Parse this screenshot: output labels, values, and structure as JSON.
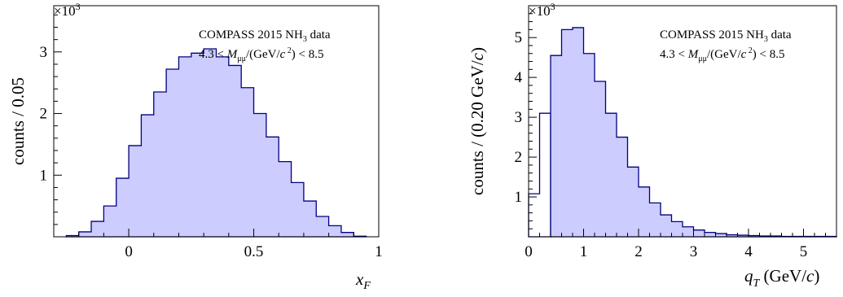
{
  "chart_data": [
    {
      "type": "bar",
      "ylabel": "counts / 0.05",
      "xlabel": "x_F",
      "y_multiplier": "×10^3",
      "annotation_line1": "COMPASS 2015 NH3 data",
      "annotation_line2": "4.3 < Mμμ/(GeV/c²) < 8.5",
      "xlim": [
        -0.3,
        1.0
      ],
      "ylim": [
        0,
        3.75
      ],
      "xticks": [
        0,
        0.5,
        1
      ],
      "xtick_labels": [
        "0",
        "0.5",
        "1"
      ],
      "yticks": [
        1,
        2,
        3
      ],
      "ytick_labels": [
        "1",
        "2",
        "3"
      ],
      "bin_edges": [
        -0.25,
        -0.2,
        -0.15,
        -0.1,
        -0.05,
        0,
        0.05,
        0.1,
        0.15,
        0.2,
        0.25,
        0.3,
        0.35,
        0.4,
        0.45,
        0.5,
        0.55,
        0.6,
        0.65,
        0.7,
        0.75,
        0.8,
        0.85,
        0.9,
        0.95
      ],
      "values": [
        0.02,
        0.08,
        0.25,
        0.5,
        0.95,
        1.48,
        1.98,
        2.35,
        2.72,
        2.92,
        2.98,
        3.05,
        2.92,
        2.78,
        2.42,
        2.0,
        1.62,
        1.22,
        0.88,
        0.58,
        0.33,
        0.18,
        0.07,
        0.01
      ],
      "colors": {
        "fill": "#ccccff",
        "line": "#000080"
      }
    },
    {
      "type": "bar",
      "ylabel": "counts / (0.20 GeV/c)",
      "xlabel": "q_T (GeV/c)",
      "y_multiplier": "×10^3",
      "annotation_line1": "COMPASS 2015 NH3 data",
      "annotation_line2": "4.3 < Mμμ/(GeV/c²) < 8.5",
      "xlim": [
        0,
        5.6
      ],
      "ylim": [
        0,
        5.8
      ],
      "xticks": [
        0,
        1,
        2,
        3,
        4,
        5
      ],
      "xtick_labels": [
        "0",
        "1",
        "2",
        "3",
        "4",
        "5"
      ],
      "yticks": [
        1,
        2,
        3,
        4,
        5
      ],
      "ytick_labels": [
        "1",
        "2",
        "3",
        "4",
        "5"
      ],
      "outline_bins": {
        "bin_edges": [
          0,
          0.2,
          0.4
        ],
        "values": [
          1.08,
          3.1
        ]
      },
      "bin_edges": [
        0.4,
        0.6,
        0.8,
        1.0,
        1.2,
        1.4,
        1.6,
        1.8,
        2.0,
        2.2,
        2.4,
        2.6,
        2.8,
        3.0,
        3.2,
        3.4,
        3.6,
        3.8,
        4.0,
        4.2,
        4.4,
        4.6,
        4.8,
        5.0,
        5.2,
        5.4,
        5.6
      ],
      "values": [
        4.55,
        5.2,
        5.25,
        4.6,
        3.9,
        3.1,
        2.5,
        1.75,
        1.25,
        0.85,
        0.55,
        0.38,
        0.25,
        0.17,
        0.11,
        0.08,
        0.05,
        0.04,
        0.03,
        0.02,
        0.02,
        0.01,
        0.01,
        0.01,
        0.01,
        0.01
      ],
      "colors": {
        "fill": "#ccccff",
        "line": "#000080"
      }
    }
  ]
}
